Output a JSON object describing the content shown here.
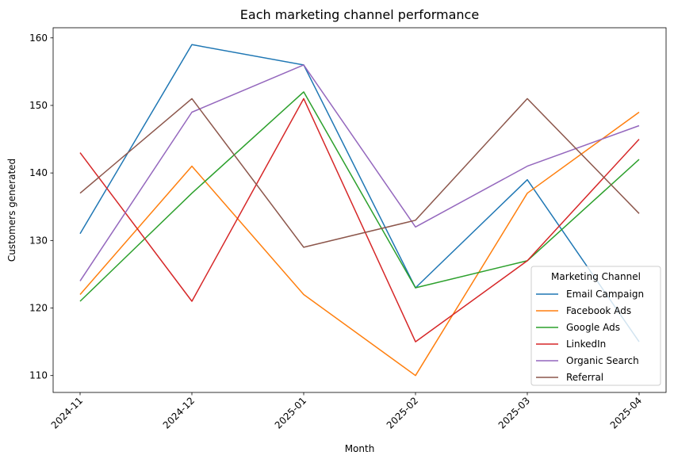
{
  "chart_data": {
    "type": "line",
    "title": "Each marketing channel performance",
    "xlabel": "Month",
    "ylabel": "Customers generated",
    "categories": [
      "2024-11",
      "2024-12",
      "2025-01",
      "2025-02",
      "2025-03",
      "2025-04"
    ],
    "ylim": [
      107.5,
      161.5
    ],
    "yticks": [
      110,
      120,
      130,
      140,
      150,
      160
    ],
    "grid": false,
    "legend": {
      "title": "Marketing Channel",
      "placement": "lower right"
    },
    "series": [
      {
        "name": "Email Campaign",
        "color": "#1f77b4",
        "values": [
          131,
          159,
          156,
          123,
          139,
          115
        ]
      },
      {
        "name": "Facebook Ads",
        "color": "#ff7f0e",
        "values": [
          122,
          141,
          122,
          110,
          137,
          149
        ]
      },
      {
        "name": "Google Ads",
        "color": "#2ca02c",
        "values": [
          121,
          137,
          152,
          123,
          127,
          142
        ]
      },
      {
        "name": "LinkedIn",
        "color": "#d62728",
        "values": [
          143,
          121,
          151,
          115,
          127,
          145
        ]
      },
      {
        "name": "Organic Search",
        "color": "#9467bd",
        "values": [
          124,
          149,
          156,
          132,
          141,
          147
        ]
      },
      {
        "name": "Referral",
        "color": "#8c564b",
        "values": [
          137,
          151,
          129,
          133,
          151,
          134
        ]
      }
    ]
  }
}
